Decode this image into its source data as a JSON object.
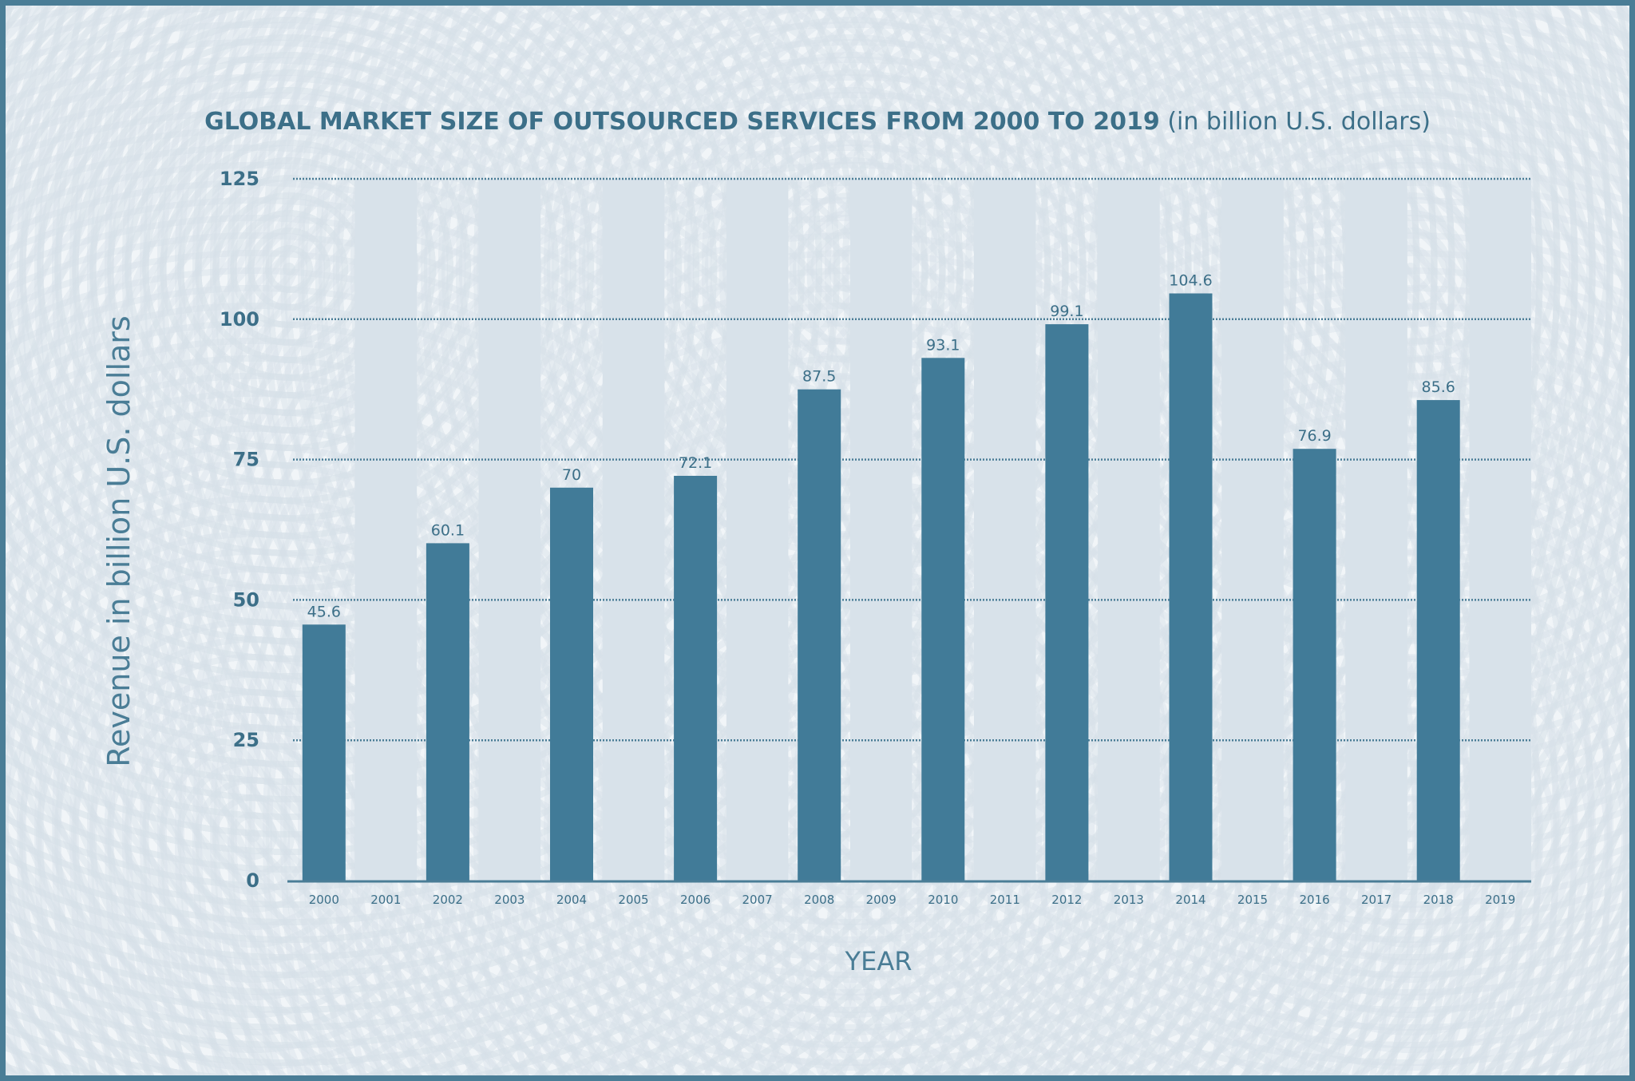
{
  "chart_data": {
    "type": "bar",
    "title": "GLOBAL MARKET SIZE OF OUTSOURCED SERVICES FROM 2000 TO 2019",
    "subtitle": "(in billion U.S. dollars)",
    "xlabel": "YEAR",
    "ylabel": "Revenue in billion U.S. dollars",
    "ylim": [
      0,
      125
    ],
    "yticks": [
      0,
      25,
      50,
      75,
      100,
      125
    ],
    "categories": [
      "2000",
      "2001",
      "2002",
      "2003",
      "2004",
      "2005",
      "2006",
      "2007",
      "2008",
      "2009",
      "2010",
      "2011",
      "2012",
      "2013",
      "2014",
      "2015",
      "2016",
      "2017",
      "2018",
      "2019"
    ],
    "values": [
      45.6,
      null,
      60.1,
      null,
      70,
      null,
      72.1,
      null,
      87.5,
      null,
      93.1,
      null,
      99.1,
      null,
      104.6,
      null,
      76.9,
      null,
      85.6,
      null
    ],
    "data_labels": [
      "45.6",
      "",
      "60.1",
      "",
      "70",
      "",
      "72.1",
      "",
      "87.5",
      "",
      "93.1",
      "",
      "99.1",
      "",
      "104.6",
      "",
      "76.9",
      "",
      "85.6",
      ""
    ],
    "grid": true,
    "colors": {
      "bar": "#417b98",
      "column_band": "#d8e2ea",
      "text": "#3c6f88",
      "grid": "#4a7d96",
      "border": "#4a7d96"
    }
  }
}
